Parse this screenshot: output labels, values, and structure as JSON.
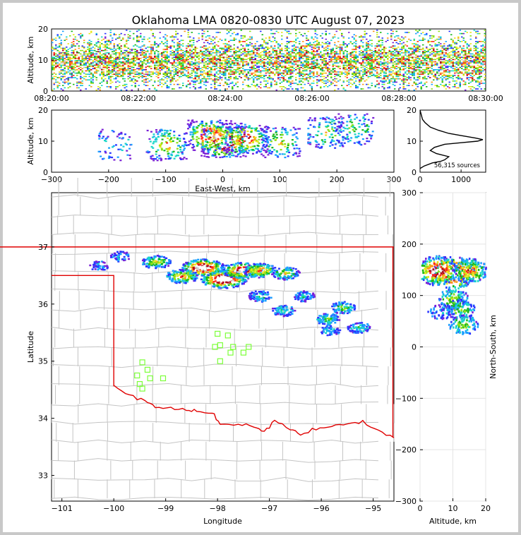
{
  "chart_data": [
    {
      "panel": "time-height",
      "type": "heatmap",
      "title": "Oklahoma LMA 0820-0830 UTC August 07, 2023",
      "xlabel": "",
      "ylabel": "Altitude, km",
      "xticks": [
        "08:20:00",
        "08:22:00",
        "08:24:00",
        "08:26:00",
        "08:28:00",
        "08:30:00"
      ],
      "yticks": [
        "0",
        "10",
        "20"
      ],
      "xlim": [
        "08:20:00",
        "08:30:00"
      ],
      "ylim": [
        0,
        20
      ],
      "density_by_altitude_km": [
        [
          2,
          0.3
        ],
        [
          4,
          0.5
        ],
        [
          6,
          0.7
        ],
        [
          8,
          0.9
        ],
        [
          10,
          1.0
        ],
        [
          11,
          1.0
        ],
        [
          12,
          0.9
        ],
        [
          14,
          0.6
        ],
        [
          16,
          0.4
        ],
        [
          18,
          0.25
        ],
        [
          20,
          0.1
        ]
      ]
    },
    {
      "panel": "ew-altitude",
      "type": "heatmap",
      "xlabel": "East-West, km",
      "ylabel": "Altitude, km",
      "xticks": [
        "−300",
        "−200",
        "−100",
        "0",
        "100",
        "200",
        "300"
      ],
      "yticks": [
        "0",
        "10",
        "20"
      ],
      "xlim": [
        -300,
        300
      ],
      "ylim": [
        0,
        20
      ],
      "clusters": [
        {
          "x": 0,
          "z": 10,
          "intensity": 1.0
        },
        {
          "x": -25,
          "z": 12,
          "intensity": 0.8
        },
        {
          "x": 40,
          "z": 11,
          "intensity": 0.7
        },
        {
          "x": -100,
          "z": 9,
          "intensity": 0.5
        },
        {
          "x": 100,
          "z": 10,
          "intensity": 0.4
        },
        {
          "x": 180,
          "z": 13,
          "intensity": 0.35
        },
        {
          "x": 230,
          "z": 14,
          "intensity": 0.3
        },
        {
          "x": -190,
          "z": 9,
          "intensity": 0.1
        }
      ]
    },
    {
      "panel": "altitude-histogram",
      "type": "line",
      "xticks": [
        "0",
        "1000"
      ],
      "yticks": [
        "0",
        "10",
        "20"
      ],
      "xlim": [
        0,
        1600
      ],
      "ylim": [
        0,
        20
      ],
      "annotation": "56,315 sources",
      "points": [
        [
          0,
          20
        ],
        [
          20,
          19
        ],
        [
          60,
          17
        ],
        [
          120,
          16
        ],
        [
          250,
          14.5
        ],
        [
          450,
          13.5
        ],
        [
          700,
          12.5
        ],
        [
          1000,
          11.8
        ],
        [
          1350,
          11
        ],
        [
          1530,
          10.5
        ],
        [
          1400,
          10
        ],
        [
          1000,
          9.5
        ],
        [
          600,
          9
        ],
        [
          350,
          8
        ],
        [
          250,
          7
        ],
        [
          400,
          6
        ],
        [
          700,
          5
        ],
        [
          600,
          4
        ],
        [
          500,
          3.5
        ],
        [
          300,
          3
        ],
        [
          100,
          2
        ],
        [
          0,
          1.2
        ]
      ]
    },
    {
      "panel": "plan-view",
      "type": "scatter",
      "xlabel": "Longitude",
      "ylabel": "Latitude",
      "xticks": [
        "−101",
        "−100",
        "−99",
        "−98",
        "−97",
        "−96",
        "−95"
      ],
      "yticks": [
        "33",
        "34",
        "35",
        "36",
        "37"
      ],
      "xlim": [
        -101.2,
        -94.6
      ],
      "ylim": [
        32.55,
        37.95
      ],
      "stations": [
        [
          -99.45,
          34.98
        ],
        [
          -99.35,
          34.85
        ],
        [
          -99.55,
          34.75
        ],
        [
          -99.3,
          34.7
        ],
        [
          -99.05,
          34.7
        ],
        [
          -99.5,
          34.6
        ],
        [
          -99.45,
          34.52
        ],
        [
          -98.0,
          35.48
        ],
        [
          -97.8,
          35.45
        ],
        [
          -98.05,
          35.25
        ],
        [
          -97.95,
          35.28
        ],
        [
          -97.7,
          35.25
        ],
        [
          -97.75,
          35.15
        ],
        [
          -97.5,
          35.15
        ],
        [
          -97.4,
          35.25
        ],
        [
          -97.95,
          35.0
        ]
      ],
      "clusters": [
        {
          "lon": -97.9,
          "lat": 36.45,
          "intensity": 1.0
        },
        {
          "lon": -98.3,
          "lat": 36.65,
          "intensity": 0.9
        },
        {
          "lon": -97.55,
          "lat": 36.6,
          "intensity": 0.8
        },
        {
          "lon": -97.2,
          "lat": 36.6,
          "intensity": 0.6
        },
        {
          "lon": -98.7,
          "lat": 36.5,
          "intensity": 0.55
        },
        {
          "lon": -99.2,
          "lat": 36.75,
          "intensity": 0.45
        },
        {
          "lon": -96.7,
          "lat": 36.55,
          "intensity": 0.4
        },
        {
          "lon": -99.9,
          "lat": 36.85,
          "intensity": 0.15
        },
        {
          "lon": -100.3,
          "lat": 36.68,
          "intensity": 0.1
        },
        {
          "lon": -97.2,
          "lat": 36.15,
          "intensity": 0.25
        },
        {
          "lon": -96.75,
          "lat": 35.9,
          "intensity": 0.25
        },
        {
          "lon": -96.35,
          "lat": 36.15,
          "intensity": 0.2
        },
        {
          "lon": -95.9,
          "lat": 35.75,
          "intensity": 0.3
        },
        {
          "lon": -95.6,
          "lat": 35.95,
          "intensity": 0.3
        },
        {
          "lon": -95.3,
          "lat": 35.6,
          "intensity": 0.25
        },
        {
          "lon": -95.85,
          "lat": 35.55,
          "intensity": 0.15
        }
      ]
    },
    {
      "panel": "ns-altitude",
      "type": "heatmap",
      "xlabel": "Altitude, km",
      "ylabel": "North-South, km",
      "xticks": [
        "0",
        "10",
        "20"
      ],
      "yticks": [
        "−300",
        "−200",
        "−100",
        "0",
        "100",
        "200",
        "300"
      ],
      "xlim": [
        0,
        20
      ],
      "ylim": [
        -300,
        300
      ],
      "clusters": [
        {
          "z": 10,
          "y": 145,
          "intensity": 1.0
        },
        {
          "z": 5,
          "y": 150,
          "intensity": 0.85
        },
        {
          "z": 15,
          "y": 150,
          "intensity": 0.6
        },
        {
          "z": 10,
          "y": 95,
          "intensity": 0.4
        },
        {
          "z": 12,
          "y": 75,
          "intensity": 0.35
        },
        {
          "z": 13,
          "y": 45,
          "intensity": 0.35
        },
        {
          "z": 6,
          "y": 70,
          "intensity": 0.1
        }
      ]
    }
  ]
}
